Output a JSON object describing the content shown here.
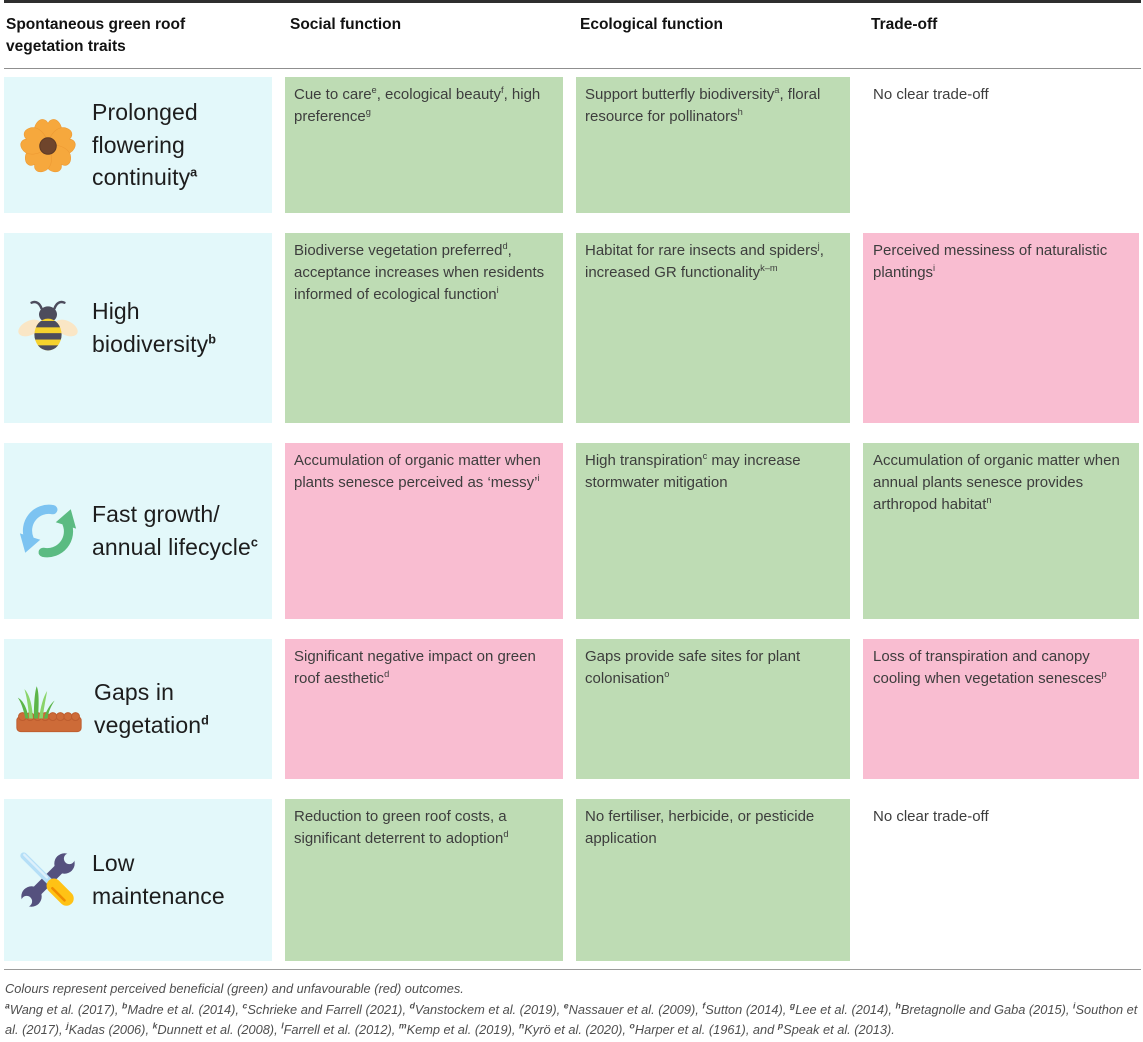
{
  "colors": {
    "green": "#bedcb4",
    "red": "#f9bdd1",
    "trait": "#e3f8fa"
  },
  "header": {
    "columns": [
      "Spontaneous green roof vegetation traits",
      "Social function",
      "Ecological function",
      "Trade-off"
    ]
  },
  "rows": [
    {
      "icon": "flower-icon",
      "trait": "Prolonged\nflowering\ncontinuity^{a}",
      "social": {
        "tone": "green",
        "text": "Cue to care^{e}, ecological beauty^{f}, high preference^{g}"
      },
      "ecological": {
        "tone": "green",
        "text": "Support butterfly biodiversity^{a}, floral resource for pollinators^{h}"
      },
      "tradeoff": {
        "tone": "none",
        "text": "No clear trade-off"
      }
    },
    {
      "icon": "bee-icon",
      "trait": "High\nbiodiversity^{b}",
      "social": {
        "tone": "green",
        "text": "Biodiverse vegetation preferred^{d}, acceptance increases when residents informed of ecological function^{i}"
      },
      "ecological": {
        "tone": "green",
        "text": "Habitat for rare insects and spiders^{j}, increased GR functionality^{k–m}"
      },
      "tradeoff": {
        "tone": "red",
        "text": "Perceived messiness of naturalistic plantings^{i}"
      }
    },
    {
      "icon": "cycle-arrows-icon",
      "trait": "Fast growth/\nannual lifecycle^{c}",
      "social": {
        "tone": "red",
        "text": "Accumulation of organic matter when plants senesce perceived as ‘messy’^{i}"
      },
      "ecological": {
        "tone": "green",
        "text": "High transpiration^{c} may increase stormwater mitigation"
      },
      "tradeoff": {
        "tone": "green",
        "text": "Accumulation of organic matter when annual plants senesce provides arthropod habitat^{n}"
      }
    },
    {
      "icon": "grass-icon",
      "trait": "Gaps in\nvegetation^{d}",
      "social": {
        "tone": "red",
        "text": "Significant negative impact on green roof aesthetic^{d}"
      },
      "ecological": {
        "tone": "green",
        "text": "Gaps provide safe sites for plant colonisation^{o}"
      },
      "tradeoff": {
        "tone": "red",
        "text": "Loss of transpiration and canopy cooling when vegetation senesces^{p}"
      }
    },
    {
      "icon": "tools-icon",
      "trait": "Low\nmaintenance",
      "social": {
        "tone": "green",
        "text": "Reduction to green roof costs, a significant deterrent to adoption^{d}"
      },
      "ecological": {
        "tone": "green",
        "text": "No fertiliser, herbicide, or pesticide application"
      },
      "tradeoff": {
        "tone": "none",
        "text": "No clear trade-off"
      }
    }
  ],
  "footnote": {
    "legend": "Colours represent perceived beneficial (green) and unfavourable (red) outcomes.",
    "references": "^{a}Wang et al. (2017), ^{b}Madre et al. (2014), ^{c}Schrieke and Farrell (2021), ^{d}Vanstockem et al. (2019), ^{e}Nassauer et al. (2009), ^{f}Sutton (2014), ^{g}Lee et al. (2014), ^{h}Bretagnolle and Gaba (2015), ^{i}Southon et al. (2017), ^{j}Kadas (2006), ^{k}Dunnett et al. (2008), ^{l}Farrell et al. (2012), ^{m}Kemp et al. (2019), ^{n}Kyrö et al. (2020), ^{o}Harper et al. (1961), and ^{p}Speak et al. (2013)."
  }
}
